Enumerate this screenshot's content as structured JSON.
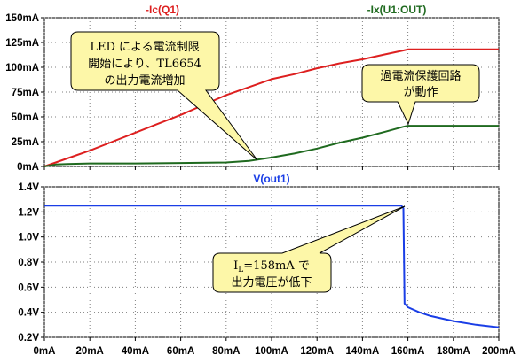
{
  "colors": {
    "ic_q1": "#dd1f1f",
    "ix_u1": "#1f6a1f",
    "v_out": "#1a3ee6",
    "callout_fill": "#fdf7a8",
    "grid": "#7f7f7f"
  },
  "chart_data": [
    {
      "type": "line",
      "title": "",
      "xlabel": "",
      "ylabel": "",
      "xlim": [
        0,
        200
      ],
      "ylim": [
        0,
        150
      ],
      "grid": true,
      "x_unit": "mA",
      "y_unit": "mA",
      "x_tick_values": [
        0,
        20,
        40,
        60,
        80,
        100,
        120,
        140,
        160,
        180,
        200
      ],
      "y_tick_values": [
        0,
        25,
        50,
        75,
        100,
        125,
        150
      ],
      "y_tick_labels": [
        "0mA",
        "25mA",
        "50mA",
        "75mA",
        "100mA",
        "125mA",
        "150mA"
      ],
      "series": [
        {
          "name": "-Ic(Q1)",
          "color_key": "ic_q1",
          "x": [
            0,
            10,
            20,
            30,
            40,
            50,
            60,
            70,
            80,
            90,
            100,
            110,
            120,
            130,
            140,
            150,
            158,
            160,
            170,
            180,
            190,
            200
          ],
          "values": [
            0,
            8,
            16,
            25,
            34,
            43,
            52,
            62,
            72,
            80,
            88,
            93,
            99,
            104,
            108,
            113,
            117,
            118,
            118,
            118,
            118,
            118
          ]
        },
        {
          "name": "-Ix(U1:OUT)",
          "color_key": "ix_u1",
          "x": [
            0,
            5,
            10,
            20,
            40,
            60,
            80,
            90,
            100,
            110,
            120,
            130,
            140,
            150,
            158,
            160,
            170,
            180,
            190,
            200
          ],
          "values": [
            0,
            2,
            2.5,
            3,
            3,
            3.5,
            4,
            5.5,
            9,
            13,
            18,
            24,
            29,
            35,
            40,
            41,
            41,
            41,
            41,
            41
          ]
        }
      ]
    },
    {
      "type": "line",
      "title": "",
      "xlabel": "",
      "ylabel": "",
      "xlim": [
        0,
        200
      ],
      "ylim": [
        0.2,
        1.4
      ],
      "grid": true,
      "x_unit": "mA",
      "y_unit": "V",
      "x_tick_values": [
        0,
        20,
        40,
        60,
        80,
        100,
        120,
        140,
        160,
        180,
        200
      ],
      "x_tick_labels": [
        "0mA",
        "20mA",
        "40mA",
        "60mA",
        "80mA",
        "100mA",
        "120mA",
        "140mA",
        "160mA",
        "180mA",
        "200mA"
      ],
      "y_tick_values": [
        0.2,
        0.4,
        0.6,
        0.8,
        1.0,
        1.2,
        1.4
      ],
      "y_tick_labels": [
        "0.2V",
        "0.4V",
        "0.6V",
        "0.8V",
        "1.0V",
        "1.2V",
        "1.4V"
      ],
      "series": [
        {
          "name": "V(out1)",
          "color_key": "v_out",
          "x": [
            0,
            100,
            157,
            158,
            158.5,
            160,
            165,
            170,
            180,
            190,
            200
          ],
          "values": [
            1.25,
            1.25,
            1.25,
            1.23,
            0.47,
            0.44,
            0.4,
            0.37,
            0.33,
            0.3,
            0.28
          ]
        }
      ]
    }
  ],
  "annotations": {
    "callout1_lines": [
      "LED による電流制限",
      "開始により、TL6654",
      "の出力電流増加"
    ],
    "callout2_lines": [
      "過電流保護回路",
      "が動作"
    ],
    "callout3_line1_main": "I",
    "callout3_line1_sub": "L",
    "callout3_line1_rest": "=158mA で",
    "callout3_line2": "出力電圧が低下"
  }
}
